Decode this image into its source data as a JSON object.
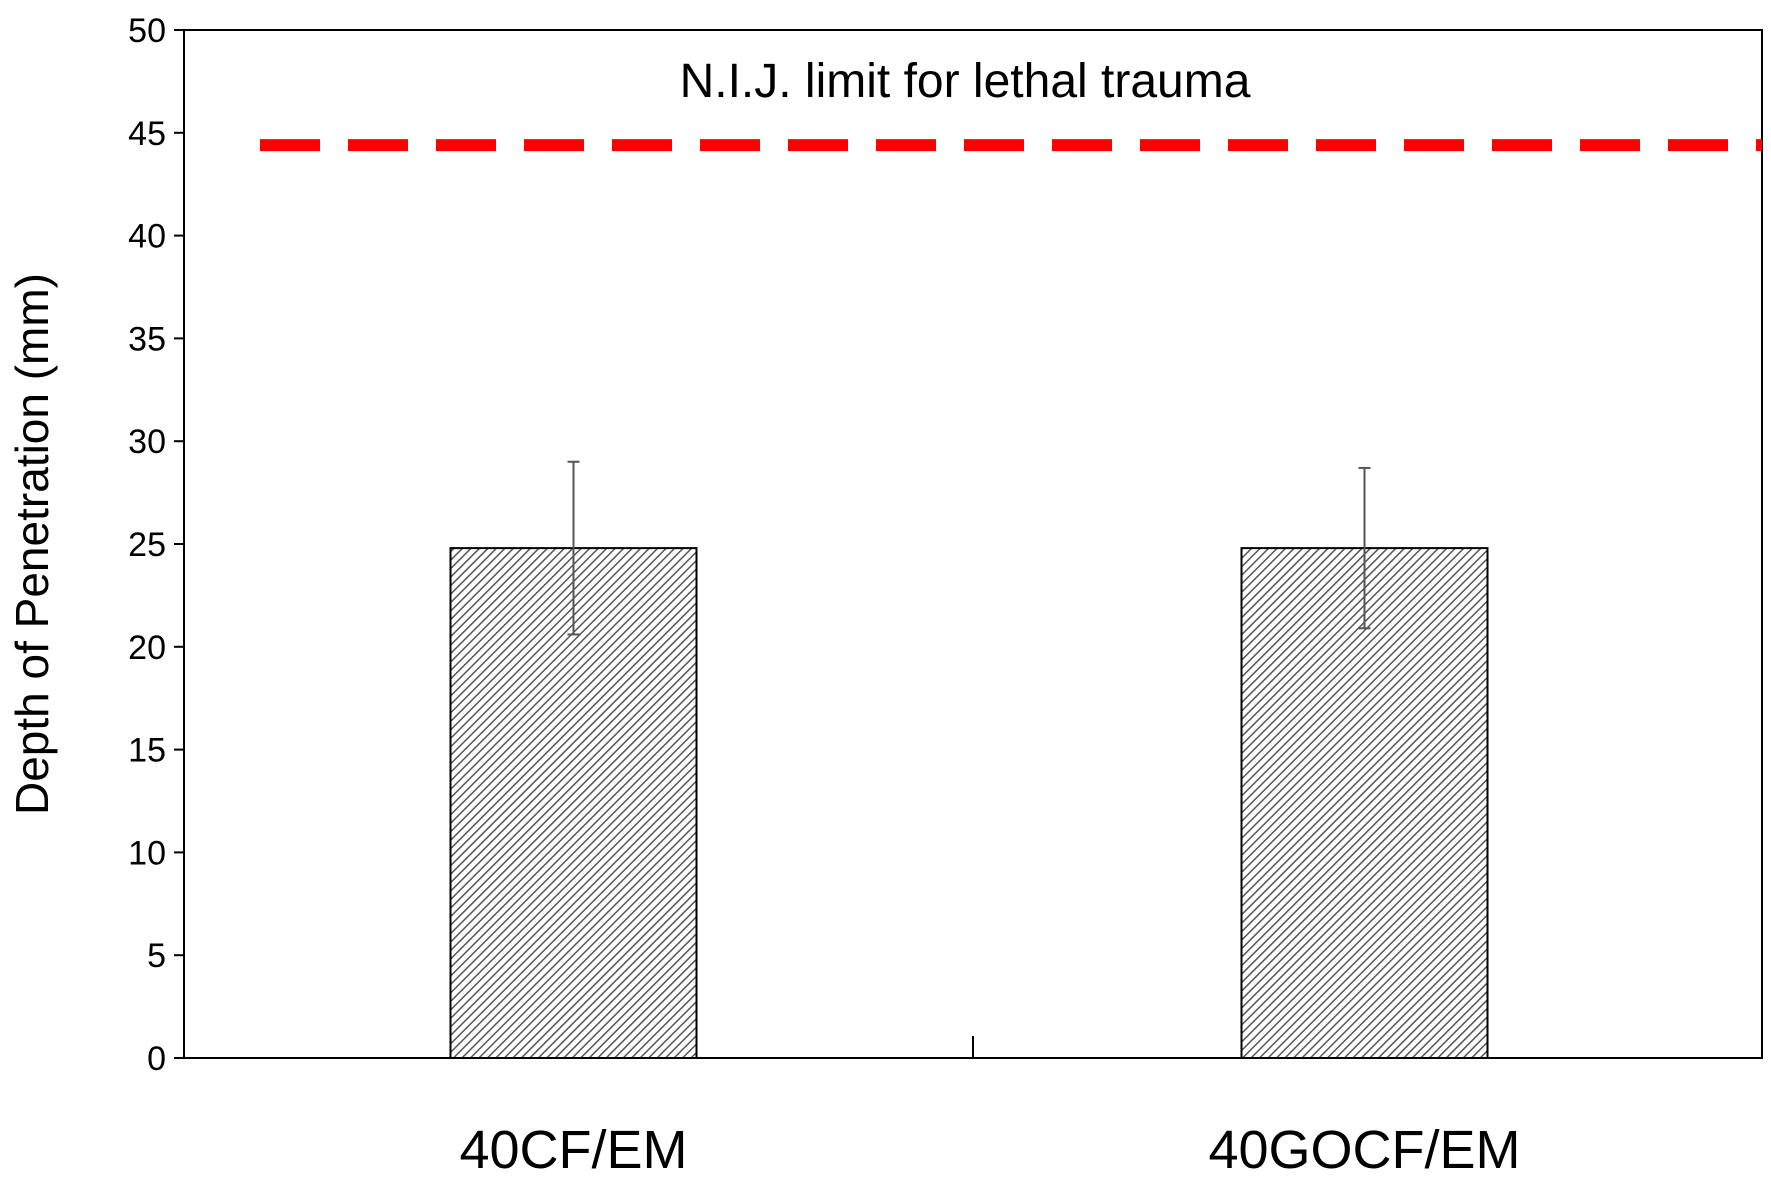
{
  "chart_data": {
    "type": "bar",
    "title": "",
    "xlabel": "",
    "ylabel": "Depth of Penetration (mm)",
    "categories": [
      "40CF/EM",
      "40GOCF/EM"
    ],
    "values": [
      24.8,
      24.8
    ],
    "error_upper": [
      29.0,
      28.7
    ],
    "error_lower": [
      20.6,
      20.9
    ],
    "ylim": [
      0,
      50
    ],
    "yticks": [
      0,
      5,
      10,
      15,
      20,
      25,
      30,
      35,
      40,
      45,
      50
    ],
    "ytick_labels": [
      "0",
      "5",
      "10",
      "15",
      "20",
      "25",
      "30",
      "35",
      "40",
      "45",
      "50"
    ],
    "grid": false,
    "bar_pattern": "diagonal-hatch",
    "reference_line": {
      "value": 44.4,
      "label": "N.I.J. limit for lethal trauma",
      "style": "dashed",
      "color": "#ff0000"
    }
  },
  "colors": {
    "axis": "#000000",
    "bar_edge": "#000000",
    "hatch": "#555555",
    "error_bar": "#555555",
    "reference": "#ff0000"
  }
}
